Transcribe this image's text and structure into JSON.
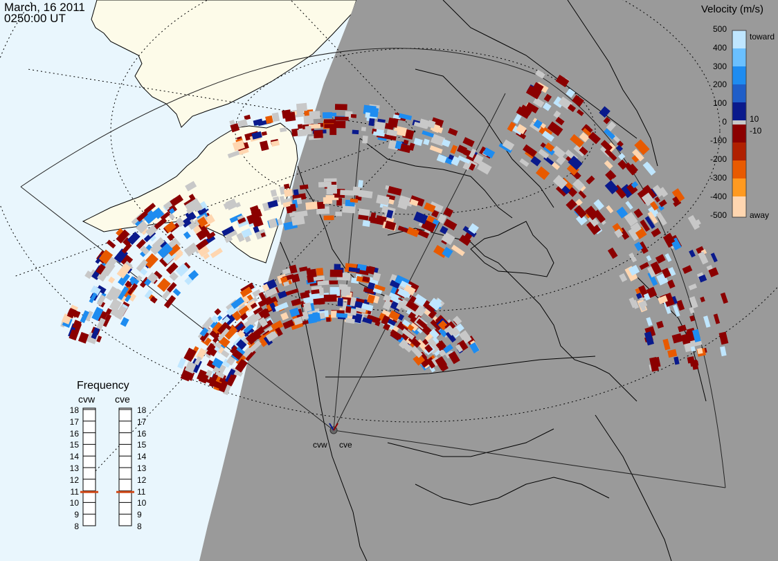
{
  "header": {
    "date": "March, 16 2011",
    "time": "0250:00 UT"
  },
  "legend": {
    "title": "Velocity (m/s)",
    "ticks": [
      "500",
      "400",
      "300",
      "200",
      "100",
      "10",
      "0",
      "-10",
      "-100",
      "-200",
      "-300",
      "-400",
      "-500"
    ],
    "toward_label": "toward",
    "away_label": "away",
    "colors": {
      "toward_light": "#bfe6ff",
      "toward_mid": "#1e8cf0",
      "toward_dark": "#0a1a8c",
      "ground_scatter": "#c8c8c8",
      "away_dark": "#8b0000",
      "away_mid": "#e85a00",
      "away_light": "#ffd6b0"
    }
  },
  "frequency": {
    "title": "Frequency",
    "radars": [
      "cvw",
      "cve"
    ],
    "scale": [
      "18",
      "17",
      "16",
      "15",
      "14",
      "13",
      "12",
      "11",
      "10",
      "9",
      "8"
    ],
    "selected_mhz": [
      10.9,
      10.9
    ]
  },
  "map": {
    "radar_labels": [
      "cvw",
      "cve"
    ],
    "colors": {
      "ocean_day": "#e9f6fd",
      "land_day": "#fdfbe9",
      "night_region": "#9a9a9a",
      "coastline": "#000000",
      "indicator": "#d04a1a"
    }
  }
}
